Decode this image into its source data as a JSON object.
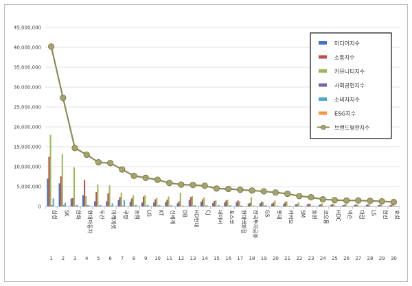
{
  "chart_data": {
    "type": "bar",
    "title": "",
    "xlabel": "",
    "ylabel": "",
    "ylim": [
      0,
      45000000
    ],
    "yticks": [
      0,
      5000000,
      10000000,
      15000000,
      20000000,
      25000000,
      30000000,
      35000000,
      40000000,
      45000000
    ],
    "ytick_labels": [
      "0",
      "5,000,000",
      "10,000,000",
      "15,000,000",
      "20,000,000",
      "25,000,000",
      "30,000,000",
      "35,000,000",
      "40,000,000",
      "45,000,000"
    ],
    "grid": true,
    "legend_position": "top-right",
    "categories": [
      "삼성",
      "SK",
      "한화",
      "현대자동차",
      "두산",
      "미래에셋",
      "쿠팡",
      "농협",
      "LG",
      "KT",
      "신세계",
      "DB",
      "HD현대",
      "CJ",
      "네이버",
      "포스코",
      "현대백화점",
      "한국투자금융",
      "GS",
      "롯데",
      "카카오",
      "SM",
      "동원",
      "코오롱",
      "HDC",
      "넥슨",
      "대림",
      "LS",
      "한진",
      "효성"
    ],
    "ranks": [
      "1",
      "2",
      "3",
      "4",
      "5",
      "6",
      "7",
      "8",
      "9",
      "10",
      "11",
      "12",
      "13",
      "14",
      "15",
      "16",
      "17",
      "18",
      "19",
      "20",
      "21",
      "22",
      "23",
      "24",
      "25",
      "26",
      "27",
      "28",
      "29",
      "30"
    ],
    "series": [
      {
        "name": "미디어지수",
        "color": "#4472C4",
        "kind": "bar",
        "values": [
          7000000,
          5800000,
          2000000,
          2800000,
          1300000,
          1300000,
          1600000,
          1200000,
          1000000,
          1000000,
          1100000,
          800000,
          1600000,
          1200000,
          900000,
          1000000,
          1100000,
          700000,
          800000,
          700000,
          700000,
          500000,
          500000,
          400000,
          400000,
          300000,
          400000,
          400000,
          300000,
          300000
        ]
      },
      {
        "name": "소통지수",
        "color": "#C0504D",
        "kind": "bar",
        "values": [
          12500000,
          7600000,
          2100000,
          6700000,
          3600000,
          3300000,
          2400000,
          2000000,
          2500000,
          1800000,
          1700000,
          1300000,
          2400000,
          1800000,
          1400000,
          1500000,
          1500000,
          900000,
          1200000,
          1000000,
          1100000,
          600000,
          700000,
          500000,
          600000,
          400000,
          500000,
          500000,
          400000,
          400000
        ]
      },
      {
        "name": "커뮤니티지수",
        "color": "#9BBB59",
        "kind": "bar",
        "values": [
          18000000,
          13200000,
          9800000,
          2600000,
          5500000,
          5300000,
          3500000,
          2800000,
          2800000,
          2200000,
          2500000,
          3400000,
          2600000,
          2300000,
          1600000,
          1700000,
          1300000,
          2400000,
          1100000,
          1500000,
          1300000,
          1000000,
          700000,
          800000,
          700000,
          700000,
          500000,
          500000,
          600000,
          400000
        ]
      },
      {
        "name": "사회공헌지수",
        "color": "#8064A2",
        "kind": "bar",
        "values": [
          300000,
          300000,
          200000,
          300000,
          200000,
          200000,
          200000,
          200000,
          200000,
          200000,
          200000,
          100000,
          200000,
          200000,
          100000,
          200000,
          200000,
          100000,
          200000,
          100000,
          100000,
          100000,
          100000,
          100000,
          100000,
          100000,
          100000,
          100000,
          100000,
          100000
        ]
      },
      {
        "name": "소비자지수",
        "color": "#4BACC6",
        "kind": "bar",
        "values": [
          2000000,
          900000,
          400000,
          300000,
          400000,
          800000,
          1600000,
          400000,
          400000,
          400000,
          300000,
          200000,
          300000,
          300000,
          400000,
          300000,
          200000,
          200000,
          300000,
          200000,
          200000,
          200000,
          200000,
          100000,
          100000,
          100000,
          100000,
          100000,
          100000,
          100000
        ]
      },
      {
        "name": "ESG지수",
        "color": "#F79646",
        "kind": "bar",
        "values": [
          100000,
          100000,
          100000,
          100000,
          100000,
          100000,
          100000,
          100000,
          100000,
          100000,
          100000,
          100000,
          100000,
          100000,
          100000,
          100000,
          100000,
          100000,
          100000,
          100000,
          100000,
          100000,
          100000,
          100000,
          100000,
          100000,
          100000,
          100000,
          100000,
          100000
        ]
      },
      {
        "name": "브랜드평판지수",
        "color": "#8C8A55",
        "kind": "line",
        "values": [
          40200000,
          27300000,
          14700000,
          13000000,
          11100000,
          10900000,
          9300000,
          7700000,
          7200000,
          6700000,
          5900000,
          5500000,
          5400000,
          5200000,
          4500000,
          4400000,
          4200000,
          4000000,
          3800000,
          3500000,
          3200000,
          2600000,
          2300000,
          1800000,
          1600000,
          1500000,
          1500000,
          1400000,
          1300000,
          1100000
        ]
      }
    ]
  }
}
